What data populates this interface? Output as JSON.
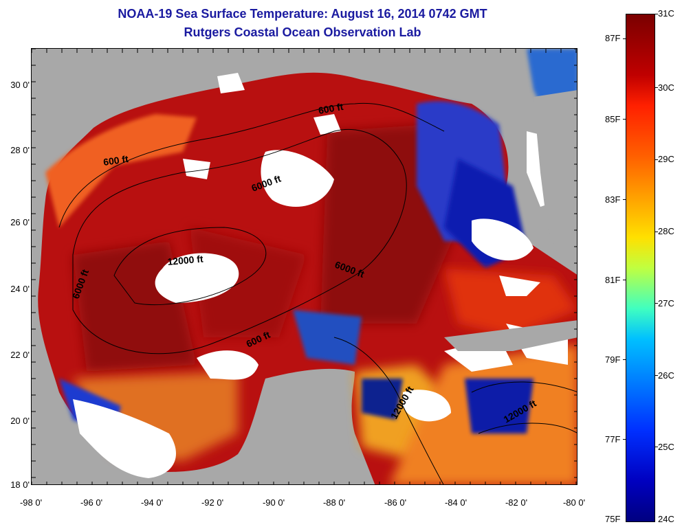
{
  "title": {
    "line1": "NOAA-19 Sea Surface Temperature:  August 16, 2014 0742 GMT",
    "line2": "Rutgers Coastal Ocean Observation Lab"
  },
  "map": {
    "latitude_labels": [
      "30 0'",
      "28 0'",
      "26 0'",
      "24 0'",
      "22 0'",
      "20 0'",
      "18 0'"
    ],
    "longitude_labels": [
      "-98 0'",
      "-96 0'",
      "-94 0'",
      "-92 0'",
      "-90 0'",
      "-88 0'",
      "-86 0'",
      "-84 0'",
      "-82 0'",
      "-80 0'"
    ],
    "contour_labels": [
      "600 ft",
      "600 ft",
      "6000 ft",
      "12000 ft",
      "6000 ft",
      "6000 ft",
      "600 ft",
      "12000 ft",
      "12000 ft"
    ],
    "colors": {
      "land": "#a8a8a8",
      "cloud": "#ffffff",
      "warmest": "#8b0000",
      "coolest": "#00008f"
    }
  },
  "colorbar": {
    "celsius_labels": [
      "31C",
      "30C",
      "29C",
      "28C",
      "27C",
      "26C",
      "25C",
      "24C"
    ],
    "fahrenheit_labels": [
      "87F",
      "85F",
      "83F",
      "81F",
      "79F",
      "77F",
      "75F"
    ],
    "range_c": [
      24,
      31
    ],
    "range_f": [
      75,
      87.8
    ]
  }
}
